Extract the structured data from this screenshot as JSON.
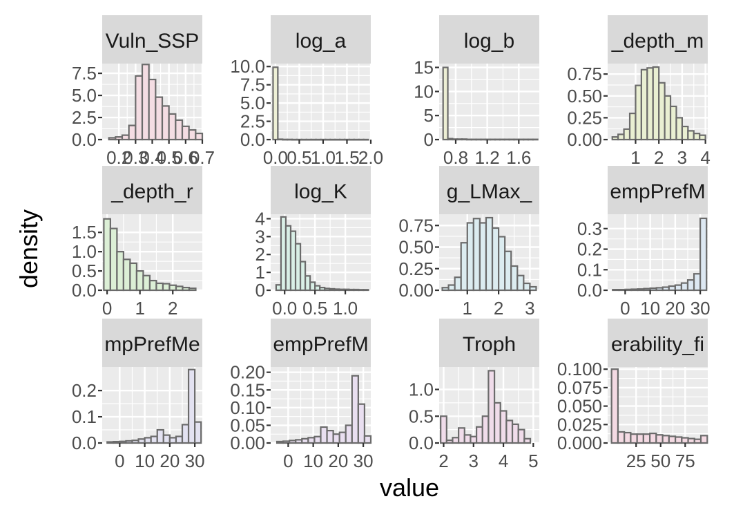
{
  "figure": {
    "xlabel": "value",
    "ylabel": "density"
  },
  "chart_data": [
    {
      "type": "bar",
      "title": "Vuln_SSP",
      "xlim": [
        0.1,
        0.7
      ],
      "ylim": [
        0,
        8.6
      ],
      "xticks": [
        0.2,
        0.3,
        0.4,
        0.5,
        0.6,
        0.7
      ],
      "xtick_labels": [
        "0.2",
        "0.3",
        "0.4",
        "0.5",
        "0.6",
        "0.7"
      ],
      "yticks": [
        0,
        2.5,
        5,
        7.5
      ],
      "ytick_labels": [
        "0.0",
        "2.5",
        "5.0",
        "7.5"
      ],
      "bins": [
        [
          0.14,
          0.18
        ],
        [
          0.18,
          0.22
        ],
        [
          0.22,
          0.26
        ],
        [
          0.26,
          0.3
        ],
        [
          0.3,
          0.34
        ],
        [
          0.34,
          0.38
        ],
        [
          0.38,
          0.42
        ],
        [
          0.42,
          0.46
        ],
        [
          0.46,
          0.5
        ],
        [
          0.5,
          0.54
        ],
        [
          0.54,
          0.58
        ],
        [
          0.58,
          0.62
        ],
        [
          0.62,
          0.66
        ],
        [
          0.66,
          0.7
        ]
      ],
      "values": [
        0.2,
        0.3,
        0.5,
        1.6,
        7.2,
        8.5,
        6.8,
        4.8,
        3.8,
        2.9,
        2.2,
        1.5,
        1.1,
        0.7
      ]
    },
    {
      "type": "bar",
      "title": "log_a",
      "xlim": [
        -0.1,
        2.0
      ],
      "ylim": [
        0,
        10.4
      ],
      "xticks": [
        0,
        0.5,
        1.0,
        1.5,
        2.0
      ],
      "xtick_labels": [
        "0.0",
        "0.5",
        "1.0",
        "1.5",
        "2.0"
      ],
      "yticks": [
        0,
        2.5,
        5,
        7.5,
        10
      ],
      "ytick_labels": [
        "0.0",
        "2.5",
        "5.0",
        "7.5",
        "10.0"
      ],
      "bins": [
        [
          -0.05,
          0.05
        ],
        [
          0.05,
          0.15
        ],
        [
          0.15,
          0.25
        ],
        [
          0.25,
          0.35
        ],
        [
          0.35,
          0.45
        ],
        [
          0.45,
          0.55
        ],
        [
          0.55,
          0.65
        ],
        [
          0.65,
          0.75
        ],
        [
          0.75,
          0.85
        ],
        [
          0.85,
          0.95
        ],
        [
          0.95,
          1.05
        ],
        [
          1.05,
          1.15
        ],
        [
          1.15,
          1.25
        ],
        [
          1.25,
          1.35
        ],
        [
          1.35,
          1.45
        ],
        [
          1.45,
          1.55
        ],
        [
          1.55,
          1.65
        ],
        [
          1.65,
          1.75
        ],
        [
          1.75,
          1.85
        ],
        [
          1.85,
          1.95
        ]
      ],
      "values": [
        9.9,
        0.05,
        0.02,
        0.02,
        0.01,
        0.01,
        0.01,
        0.01,
        0.01,
        0.01,
        0.01,
        0.01,
        0.01,
        0.01,
        0.01,
        0.01,
        0.01,
        0.01,
        0.01,
        0.01
      ]
    },
    {
      "type": "bar",
      "title": "log_b",
      "xlim": [
        0.59,
        1.86
      ],
      "ylim": [
        0,
        15.8
      ],
      "xticks": [
        0.8,
        1.2,
        1.6
      ],
      "xtick_labels": [
        "0.8",
        "1.2",
        "1.6"
      ],
      "yticks": [
        0,
        5,
        10,
        15
      ],
      "ytick_labels": [
        "0",
        "5",
        "10",
        "15"
      ],
      "bins": [
        [
          0.64,
          0.7
        ],
        [
          0.7,
          0.76
        ],
        [
          0.76,
          0.82
        ],
        [
          0.82,
          0.88
        ],
        [
          0.88,
          0.94
        ],
        [
          0.94,
          1.0
        ],
        [
          1.0,
          1.06
        ],
        [
          1.06,
          1.12
        ],
        [
          1.12,
          1.18
        ],
        [
          1.18,
          1.24
        ],
        [
          1.24,
          1.3
        ],
        [
          1.3,
          1.36
        ],
        [
          1.36,
          1.42
        ],
        [
          1.42,
          1.48
        ],
        [
          1.48,
          1.54
        ],
        [
          1.54,
          1.6
        ],
        [
          1.6,
          1.66
        ],
        [
          1.66,
          1.72
        ],
        [
          1.72,
          1.78
        ],
        [
          1.78,
          1.84
        ]
      ],
      "values": [
        15.0,
        0.2,
        0.1,
        0.1,
        0.1,
        0.05,
        0.05,
        0.05,
        0.05,
        0.05,
        0.05,
        0.05,
        0.05,
        0.05,
        0.05,
        0.05,
        0.05,
        0.05,
        0.05,
        0.05
      ]
    },
    {
      "type": "bar",
      "title": "_depth_m",
      "xlim": [
        -0.2,
        4.1
      ],
      "ylim": [
        0,
        0.87
      ],
      "xticks": [
        1,
        2,
        3,
        4
      ],
      "xtick_labels": [
        "1",
        "2",
        "3",
        "4"
      ],
      "yticks": [
        0,
        0.25,
        0.5,
        0.75
      ],
      "ytick_labels": [
        "0.00",
        "0.25",
        "0.50",
        "0.75"
      ],
      "bins": [
        [
          0.0,
          0.25
        ],
        [
          0.25,
          0.5
        ],
        [
          0.5,
          0.75
        ],
        [
          0.75,
          1.0
        ],
        [
          1.0,
          1.25
        ],
        [
          1.25,
          1.5
        ],
        [
          1.5,
          1.75
        ],
        [
          1.75,
          2.0
        ],
        [
          2.0,
          2.25
        ],
        [
          2.25,
          2.5
        ],
        [
          2.5,
          2.75
        ],
        [
          2.75,
          3.0
        ],
        [
          3.0,
          3.25
        ],
        [
          3.25,
          3.5
        ],
        [
          3.5,
          3.75
        ],
        [
          3.75,
          4.0
        ]
      ],
      "values": [
        0.03,
        0.06,
        0.12,
        0.3,
        0.62,
        0.8,
        0.82,
        0.83,
        0.65,
        0.5,
        0.38,
        0.25,
        0.15,
        0.1,
        0.07,
        0.05
      ]
    },
    {
      "type": "bar",
      "title": "_depth_r",
      "xlim": [
        -0.15,
        2.9
      ],
      "ylim": [
        0,
        1.97
      ],
      "xticks": [
        0,
        1,
        2
      ],
      "xtick_labels": [
        "0",
        "1",
        "2"
      ],
      "yticks": [
        0,
        0.5,
        1.0,
        1.5
      ],
      "ytick_labels": [
        "0.0",
        "0.5",
        "1.0",
        "1.5"
      ],
      "bins": [
        [
          -0.1,
          0.1
        ],
        [
          0.1,
          0.3
        ],
        [
          0.3,
          0.5
        ],
        [
          0.5,
          0.7
        ],
        [
          0.7,
          0.9
        ],
        [
          0.9,
          1.1
        ],
        [
          1.1,
          1.3
        ],
        [
          1.3,
          1.5
        ],
        [
          1.5,
          1.7
        ],
        [
          1.7,
          1.9
        ],
        [
          1.9,
          2.1
        ],
        [
          2.1,
          2.3
        ],
        [
          2.3,
          2.5
        ],
        [
          2.5,
          2.7
        ]
      ],
      "values": [
        1.85,
        1.6,
        1.0,
        0.8,
        0.7,
        0.5,
        0.38,
        0.25,
        0.18,
        0.17,
        0.13,
        0.1,
        0.07,
        0.05
      ]
    },
    {
      "type": "bar",
      "title": "log_K",
      "xlim": [
        -0.23,
        1.42
      ],
      "ylim": [
        0,
        4.25
      ],
      "xticks": [
        0,
        0.5,
        1.0
      ],
      "xtick_labels": [
        "0.0",
        "0.5",
        "1.0"
      ],
      "yticks": [
        0,
        1,
        2,
        3,
        4
      ],
      "ytick_labels": [
        "0",
        "1",
        "2",
        "3",
        "4"
      ],
      "bins": [
        [
          -0.14,
          -0.06
        ],
        [
          -0.06,
          0.02
        ],
        [
          0.02,
          0.1
        ],
        [
          0.1,
          0.18
        ],
        [
          0.18,
          0.26
        ],
        [
          0.26,
          0.34
        ],
        [
          0.34,
          0.42
        ],
        [
          0.42,
          0.5
        ],
        [
          0.5,
          0.58
        ],
        [
          0.58,
          0.66
        ],
        [
          0.66,
          0.74
        ],
        [
          0.74,
          0.82
        ],
        [
          0.82,
          0.9
        ],
        [
          0.9,
          0.98
        ],
        [
          0.98,
          1.06
        ],
        [
          1.06,
          1.14
        ],
        [
          1.14,
          1.22
        ],
        [
          1.22,
          1.3
        ],
        [
          1.3,
          1.38
        ]
      ],
      "values": [
        0.3,
        4.1,
        3.6,
        3.3,
        2.6,
        1.6,
        0.8,
        0.45,
        0.25,
        0.15,
        0.1,
        0.08,
        0.06,
        0.05,
        0.05,
        0.04,
        0.04,
        0.03,
        0.03
      ]
    },
    {
      "type": "bar",
      "title": "g_LMax_",
      "xlim": [
        0.1,
        3.3
      ],
      "ylim": [
        0,
        0.88
      ],
      "xticks": [
        1,
        2,
        3
      ],
      "xtick_labels": [
        "1",
        "2",
        "3"
      ],
      "yticks": [
        0,
        0.25,
        0.5,
        0.75
      ],
      "ytick_labels": [
        "0.00",
        "0.25",
        "0.50",
        "0.75"
      ],
      "bins": [
        [
          0.2,
          0.4
        ],
        [
          0.4,
          0.6
        ],
        [
          0.6,
          0.8
        ],
        [
          0.8,
          1.0
        ],
        [
          1.0,
          1.2
        ],
        [
          1.2,
          1.4
        ],
        [
          1.4,
          1.6
        ],
        [
          1.6,
          1.8
        ],
        [
          1.8,
          2.0
        ],
        [
          2.0,
          2.2
        ],
        [
          2.2,
          2.4
        ],
        [
          2.4,
          2.6
        ],
        [
          2.6,
          2.8
        ],
        [
          2.8,
          3.0
        ],
        [
          3.0,
          3.2
        ]
      ],
      "values": [
        0.03,
        0.06,
        0.15,
        0.55,
        0.78,
        0.83,
        0.78,
        0.84,
        0.72,
        0.62,
        0.45,
        0.28,
        0.17,
        0.08,
        0.04
      ]
    },
    {
      "type": "bar",
      "title": "empPrefM",
      "xlim": [
        -7,
        33
      ],
      "ylim": [
        0,
        0.37
      ],
      "xticks": [
        0,
        10,
        20,
        30
      ],
      "xtick_labels": [
        "0",
        "10",
        "20",
        "30"
      ],
      "yticks": [
        0,
        0.1,
        0.2,
        0.3
      ],
      "ytick_labels": [
        "0.0",
        "0.1",
        "0.2",
        "0.3"
      ],
      "bins": [
        [
          -5,
          -2.5
        ],
        [
          -2.5,
          0
        ],
        [
          0,
          2.5
        ],
        [
          2.5,
          5
        ],
        [
          5,
          7.5
        ],
        [
          7.5,
          10
        ],
        [
          10,
          12.5
        ],
        [
          12.5,
          15
        ],
        [
          15,
          17.5
        ],
        [
          17.5,
          20
        ],
        [
          20,
          22.5
        ],
        [
          22.5,
          25
        ],
        [
          25,
          27.5
        ],
        [
          27.5,
          30
        ],
        [
          30,
          32.5
        ]
      ],
      "values": [
        0.003,
        0.003,
        0.004,
        0.005,
        0.006,
        0.008,
        0.01,
        0.012,
        0.015,
        0.02,
        0.025,
        0.035,
        0.05,
        0.08,
        0.35
      ]
    },
    {
      "type": "bar",
      "title": "mpPrefMe",
      "xlim": [
        -7,
        33
      ],
      "ylim": [
        0,
        0.29
      ],
      "xticks": [
        0,
        10,
        20,
        30
      ],
      "xtick_labels": [
        "0",
        "10",
        "20",
        "30"
      ],
      "yticks": [
        0,
        0.1,
        0.2
      ],
      "ytick_labels": [
        "0.0",
        "0.1",
        "0.2"
      ],
      "bins": [
        [
          -5,
          -2.5
        ],
        [
          -2.5,
          0
        ],
        [
          0,
          2.5
        ],
        [
          2.5,
          5
        ],
        [
          5,
          7.5
        ],
        [
          7.5,
          10
        ],
        [
          10,
          12.5
        ],
        [
          12.5,
          15
        ],
        [
          15,
          17.5
        ],
        [
          17.5,
          20
        ],
        [
          20,
          22.5
        ],
        [
          22.5,
          25
        ],
        [
          25,
          27.5
        ],
        [
          27.5,
          30
        ],
        [
          30,
          32.5
        ]
      ],
      "values": [
        0.004,
        0.005,
        0.006,
        0.008,
        0.01,
        0.015,
        0.02,
        0.025,
        0.05,
        0.03,
        0.02,
        0.025,
        0.07,
        0.28,
        0.08
      ]
    },
    {
      "type": "bar",
      "title": "empPrefM",
      "xlim": [
        -7,
        33
      ],
      "ylim": [
        0,
        0.215
      ],
      "xticks": [
        0,
        10,
        20,
        30
      ],
      "xtick_labels": [
        "0",
        "10",
        "20",
        "30"
      ],
      "yticks": [
        0,
        0.05,
        0.1,
        0.15,
        0.2
      ],
      "ytick_labels": [
        "0.00",
        "0.05",
        "0.10",
        "0.15",
        "0.20"
      ],
      "bins": [
        [
          -4.5,
          -2
        ],
        [
          -2,
          0.5
        ],
        [
          0.5,
          3
        ],
        [
          3,
          5.5
        ],
        [
          5.5,
          8
        ],
        [
          8,
          10.5
        ],
        [
          10.5,
          13
        ],
        [
          13,
          15.5
        ],
        [
          15.5,
          18
        ],
        [
          18,
          20.5
        ],
        [
          20.5,
          23
        ],
        [
          23,
          25.5
        ],
        [
          25.5,
          28
        ],
        [
          28,
          30.5
        ],
        [
          30.5,
          33
        ]
      ],
      "values": [
        0.004,
        0.005,
        0.007,
        0.009,
        0.012,
        0.015,
        0.018,
        0.045,
        0.035,
        0.025,
        0.03,
        0.05,
        0.19,
        0.11,
        0.02
      ]
    },
    {
      "type": "bar",
      "title": "Troph",
      "xlim": [
        1.85,
        5.2
      ],
      "ylim": [
        0,
        1.42
      ],
      "xticks": [
        2,
        3,
        4,
        5
      ],
      "xtick_labels": [
        "2",
        "3",
        "4",
        "5"
      ],
      "yticks": [
        0,
        0.5,
        1.0
      ],
      "ytick_labels": [
        "0.0",
        "0.5",
        "1.0"
      ],
      "bins": [
        [
          1.9,
          2.1
        ],
        [
          2.1,
          2.3
        ],
        [
          2.3,
          2.5
        ],
        [
          2.5,
          2.7
        ],
        [
          2.7,
          2.9
        ],
        [
          2.9,
          3.1
        ],
        [
          3.1,
          3.3
        ],
        [
          3.3,
          3.5
        ],
        [
          3.5,
          3.7
        ],
        [
          3.7,
          3.9
        ],
        [
          3.9,
          4.1
        ],
        [
          4.1,
          4.3
        ],
        [
          4.3,
          4.5
        ],
        [
          4.5,
          4.7
        ],
        [
          4.7,
          4.9
        ]
      ],
      "values": [
        0.5,
        0.05,
        0.1,
        0.28,
        0.15,
        0.12,
        0.3,
        0.5,
        1.35,
        0.75,
        0.6,
        0.42,
        0.35,
        0.25,
        0.08
      ]
    },
    {
      "type": "bar",
      "title": "erability_fi",
      "xlim": [
        -4,
        98
      ],
      "ylim": [
        0,
        0.103
      ],
      "xticks": [
        25,
        50,
        75
      ],
      "xtick_labels": [
        "25",
        "50",
        "75"
      ],
      "yticks": [
        0,
        0.025,
        0.05,
        0.075,
        0.1
      ],
      "ytick_labels": [
        "0.000",
        "0.025",
        "0.050",
        "0.075",
        "0.100"
      ],
      "bins": [
        [
          0,
          6.5
        ],
        [
          6.5,
          13
        ],
        [
          13,
          19.5
        ],
        [
          19.5,
          26
        ],
        [
          26,
          32.5
        ],
        [
          32.5,
          39
        ],
        [
          39,
          45.5
        ],
        [
          45.5,
          52
        ],
        [
          52,
          58.5
        ],
        [
          58.5,
          65
        ],
        [
          65,
          71.5
        ],
        [
          71.5,
          78
        ],
        [
          78,
          84.5
        ],
        [
          84.5,
          91
        ],
        [
          91,
          97.5
        ]
      ],
      "values": [
        0.1,
        0.015,
        0.014,
        0.012,
        0.012,
        0.012,
        0.013,
        0.011,
        0.01,
        0.009,
        0.008,
        0.007,
        0.006,
        0.005,
        0.01
      ]
    }
  ]
}
